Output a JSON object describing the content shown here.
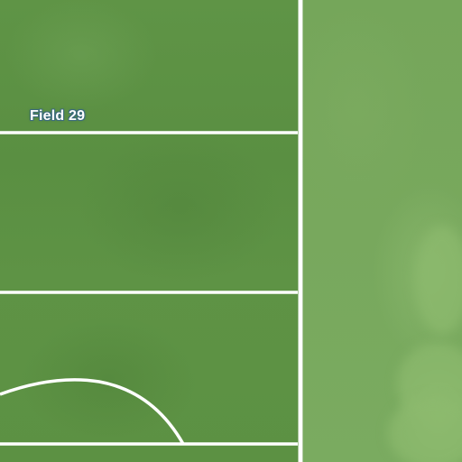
{
  "map": {
    "labels": {
      "field": "Field 29"
    },
    "colors": {
      "turf": "#5e9345",
      "turf_light": "#78a85d",
      "line": "#ffffff",
      "label_text": "#ffffff",
      "label_halo": "#3a6a7a"
    }
  }
}
